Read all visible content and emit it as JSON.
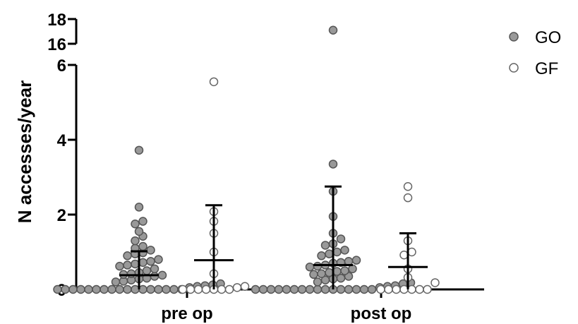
{
  "chart_data": {
    "type": "scatter",
    "ylabel": "N accesses/year",
    "categories": [
      "pre op",
      "post op"
    ],
    "yticks": [
      0,
      2,
      4,
      6,
      16,
      18
    ],
    "ylim": [
      0,
      18
    ],
    "axis_break": [
      6,
      16
    ],
    "legend": {
      "placement": "top-right"
    },
    "series": [
      {
        "name": "GO",
        "color": "#999999",
        "marker": "filled-circle",
        "groups": [
          {
            "category": "pre op",
            "center_line": 0.38,
            "whisker_low": 0.0,
            "whisker_high": 1.02,
            "values": [
              3.72,
              2.2,
              1.82,
              1.75,
              1.55,
              1.42,
              1.3,
              1.15,
              1.1,
              1.05,
              0.98,
              0.95,
              0.9,
              0.8,
              0.75,
              0.72,
              0.68,
              0.65,
              0.62,
              0.55,
              0.5,
              0.45,
              0.42,
              0.4,
              0.38,
              0.35,
              0.3,
              0.28,
              0.25,
              0.22,
              0.2,
              0.15,
              0.12,
              0.1,
              0.08,
              0.05,
              0,
              0,
              0,
              0,
              0,
              0,
              0,
              0,
              0,
              0,
              0,
              0,
              0,
              0,
              0,
              0,
              0
            ]
          },
          {
            "category": "post op",
            "center_line": 0.65,
            "whisker_low": 0.0,
            "whisker_high": 2.75,
            "values": [
              17.1,
              3.35,
              2.62,
              1.95,
              1.5,
              1.35,
              1.22,
              1.18,
              1.05,
              1.0,
              0.95,
              0.9,
              0.78,
              0.75,
              0.72,
              0.7,
              0.65,
              0.62,
              0.6,
              0.55,
              0.5,
              0.48,
              0.45,
              0.42,
              0.4,
              0.35,
              0.3,
              0.28,
              0.25,
              0.2,
              0.18,
              0.15,
              0.1,
              0.08,
              0.05,
              0,
              0,
              0,
              0,
              0,
              0,
              0,
              0,
              0,
              0,
              0,
              0,
              0,
              0,
              0,
              0
            ]
          }
        ]
      },
      {
        "name": "GF",
        "color": "#ffffff",
        "marker": "open-circle",
        "groups": [
          {
            "category": "pre op",
            "center_line": 0.78,
            "whisker_low": 0.0,
            "whisker_high": 2.25,
            "values": [
              5.55,
              2.08,
              1.82,
              1.5,
              1.0,
              0.42,
              0.08,
              0.05,
              0,
              0,
              0,
              0,
              0,
              0,
              0
            ]
          },
          {
            "category": "post op",
            "center_line": 0.6,
            "whisker_low": 0.0,
            "whisker_high": 1.5,
            "values": [
              2.75,
              2.45,
              1.3,
              1.0,
              0.92,
              0.55,
              0.32,
              0.18,
              0,
              0,
              0,
              0,
              0,
              0,
              0
            ]
          }
        ]
      }
    ]
  }
}
